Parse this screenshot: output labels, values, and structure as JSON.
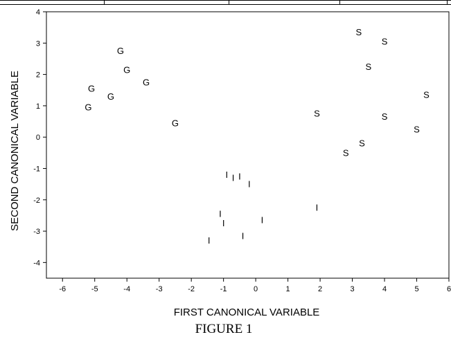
{
  "figure_caption": "FIGURE 1",
  "chart_data": {
    "type": "scatter",
    "xlabel": "FIRST CANONICAL VARIABLE",
    "ylabel": "SECOND CANONICAL VARIABLE",
    "xlim": [
      -6.5,
      6
    ],
    "ylim": [
      -4.5,
      4
    ],
    "xticks": [
      -6,
      -5,
      -4,
      -3,
      -2,
      -1,
      0,
      1,
      2,
      3,
      4,
      5,
      6
    ],
    "xtick_labels": [
      "-6",
      "-5",
      "-4",
      "-3",
      "-2",
      "-1",
      "0",
      "1",
      "2",
      "3",
      "4",
      "5",
      "6"
    ],
    "yticks": [
      -4,
      -3,
      -2,
      -1,
      0,
      1,
      2,
      3,
      4
    ],
    "ytick_labels": [
      "-4",
      "-3",
      "-2",
      "-1",
      "0",
      "1",
      "2",
      "3",
      "4"
    ],
    "grid": false,
    "series": [
      {
        "marker": "G",
        "points": [
          {
            "x": -4.2,
            "y": 2.75
          },
          {
            "x": -4.0,
            "y": 2.15
          },
          {
            "x": -3.4,
            "y": 1.75
          },
          {
            "x": -5.1,
            "y": 1.55
          },
          {
            "x": -4.5,
            "y": 1.3
          },
          {
            "x": -5.2,
            "y": 0.95
          },
          {
            "x": -2.5,
            "y": 0.45
          }
        ]
      },
      {
        "marker": "S",
        "points": [
          {
            "x": 3.2,
            "y": 3.35
          },
          {
            "x": 4.0,
            "y": 3.05
          },
          {
            "x": 3.5,
            "y": 2.25
          },
          {
            "x": 5.3,
            "y": 1.35
          },
          {
            "x": 1.9,
            "y": 0.75
          },
          {
            "x": 4.0,
            "y": 0.65
          },
          {
            "x": 5.0,
            "y": 0.25
          },
          {
            "x": 3.3,
            "y": -0.2
          },
          {
            "x": 2.8,
            "y": -0.5
          }
        ]
      },
      {
        "marker": "I",
        "points": [
          {
            "x": -0.9,
            "y": -1.2
          },
          {
            "x": -0.7,
            "y": -1.3
          },
          {
            "x": -0.5,
            "y": -1.25
          },
          {
            "x": -0.2,
            "y": -1.5
          },
          {
            "x": 1.9,
            "y": -2.25
          },
          {
            "x": -1.1,
            "y": -2.45
          },
          {
            "x": 0.2,
            "y": -2.65
          },
          {
            "x": -1.0,
            "y": -2.75
          },
          {
            "x": -0.4,
            "y": -3.15
          },
          {
            "x": -1.45,
            "y": -3.3
          }
        ]
      }
    ]
  }
}
